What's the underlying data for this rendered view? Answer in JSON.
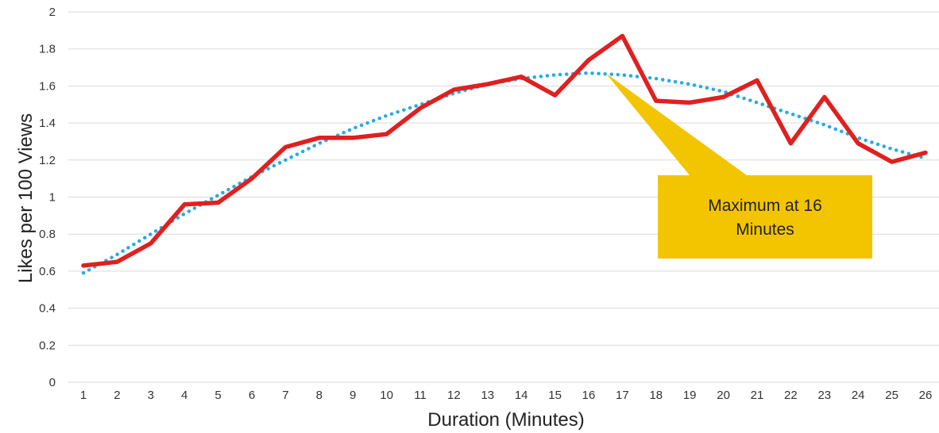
{
  "chart_data": {
    "type": "line",
    "title": "",
    "xlabel": "Duration (Minutes)",
    "ylabel": "Likes per 100 Views",
    "ylim": [
      0,
      2
    ],
    "yticks": [
      "0",
      "0.2",
      "0.4",
      "0.6",
      "0.8",
      "1",
      "1.2",
      "1.4",
      "1.6",
      "1.8",
      "2"
    ],
    "x": [
      "1",
      "2",
      "3",
      "4",
      "5",
      "6",
      "7",
      "8",
      "9",
      "10",
      "11",
      "12",
      "13",
      "14",
      "15",
      "16",
      "17",
      "18",
      "19",
      "20",
      "21",
      "22",
      "23",
      "24",
      "25",
      "26"
    ],
    "grid": true,
    "legend": "none",
    "series": [
      {
        "style": "solid",
        "color": "#e02020",
        "values": [
          0.63,
          0.65,
          0.75,
          0.96,
          0.97,
          1.1,
          1.27,
          1.32,
          1.32,
          1.34,
          1.48,
          1.58,
          1.61,
          1.65,
          1.55,
          1.74,
          1.87,
          1.52,
          1.51,
          1.54,
          1.63,
          1.29,
          1.54,
          1.29,
          1.19,
          1.24
        ]
      },
      {
        "style": "dotted",
        "color": "#29abe2",
        "values": [
          0.59,
          0.69,
          0.8,
          0.91,
          1.01,
          1.11,
          1.2,
          1.29,
          1.37,
          1.44,
          1.5,
          1.56,
          1.61,
          1.64,
          1.66,
          1.67,
          1.66,
          1.64,
          1.61,
          1.57,
          1.51,
          1.45,
          1.39,
          1.32,
          1.26,
          1.21
        ]
      }
    ],
    "annotation": {
      "lines": [
        "Maximum at 16",
        "Minutes"
      ],
      "target_x": 16.5,
      "target_y": 1.67,
      "fill": "#f2c500"
    }
  }
}
